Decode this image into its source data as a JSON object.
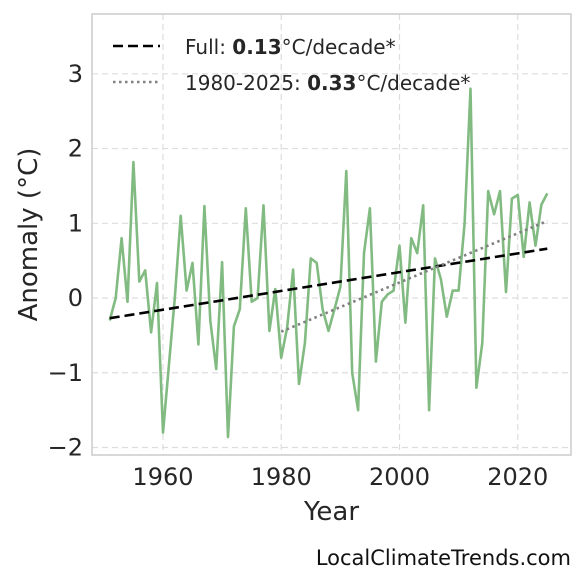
{
  "chart_data": {
    "type": "line",
    "xlabel": "Year",
    "ylabel": "Anomaly (°C)",
    "xlim": [
      1948,
      2029
    ],
    "ylim": [
      -2.1,
      3.8
    ],
    "xticks": [
      1960,
      1980,
      2000,
      2020
    ],
    "yticks": [
      -2,
      -1,
      0,
      1,
      2,
      3
    ],
    "ytick_labels": [
      "−2",
      "−1",
      "0",
      "1",
      "2",
      "3"
    ],
    "grid": true,
    "legend_position": "top-left",
    "series": [
      {
        "style": "line",
        "color": "#82bb82",
        "x": [
          1951,
          1952,
          1953,
          1954,
          1955,
          1956,
          1957,
          1958,
          1959,
          1960,
          1961,
          1962,
          1963,
          1964,
          1965,
          1966,
          1967,
          1968,
          1969,
          1970,
          1971,
          1972,
          1973,
          1974,
          1975,
          1976,
          1977,
          1978,
          1979,
          1980,
          1981,
          1982,
          1983,
          1984,
          1985,
          1986,
          1987,
          1988,
          1989,
          1990,
          1991,
          1992,
          1993,
          1994,
          1995,
          1996,
          1997,
          1998,
          1999,
          2000,
          2001,
          2002,
          2003,
          2004,
          2005,
          2006,
          2007,
          2008,
          2009,
          2010,
          2011,
          2012,
          2013,
          2014,
          2015,
          2016,
          2017,
          2018,
          2019,
          2020,
          2021,
          2022,
          2023,
          2024,
          2025
        ],
        "y": [
          -0.3,
          0.0,
          0.8,
          -0.05,
          1.82,
          0.22,
          0.37,
          -0.46,
          0.2,
          -1.8,
          -0.9,
          0.0,
          1.1,
          0.1,
          0.47,
          -0.62,
          1.23,
          -0.3,
          -0.95,
          0.48,
          -1.86,
          -0.38,
          -0.15,
          1.2,
          -0.05,
          0.0,
          1.24,
          -0.44,
          0.12,
          -0.8,
          -0.4,
          0.38,
          -1.15,
          -0.6,
          0.53,
          0.47,
          -0.15,
          -0.44,
          -0.15,
          0.15,
          1.7,
          -1.0,
          -1.5,
          0.6,
          1.2,
          -0.85,
          -0.05,
          0.05,
          0.1,
          0.7,
          -0.33,
          0.8,
          0.6,
          1.24,
          -1.5,
          0.53,
          0.25,
          -0.25,
          0.1,
          0.1,
          1.0,
          2.8,
          -1.2,
          -0.6,
          1.43,
          1.12,
          1.43,
          0.08,
          1.33,
          1.38,
          0.55,
          1.28,
          0.7,
          1.25,
          1.4
        ]
      },
      {
        "name": "Full: 0.13°C/decade*",
        "style": "dashed",
        "color": "#000000",
        "x": [
          1951,
          2025
        ],
        "y": [
          -0.27,
          0.66
        ]
      },
      {
        "name": "1980-2025: 0.33°C/decade*",
        "style": "dotted",
        "color": "#808080",
        "x": [
          1980,
          2025
        ],
        "y": [
          -0.45,
          1.03
        ]
      }
    ],
    "legend": [
      {
        "prefix": "Full: ",
        "bold": "0.13",
        "suffix": "°C/decade*",
        "style": "dashed",
        "color": "#000000"
      },
      {
        "prefix": "1980-2025: ",
        "bold": "0.33",
        "suffix": "°C/decade*",
        "style": "dotted",
        "color": "#808080"
      }
    ]
  },
  "credit": "LocalClimateTrends.com"
}
